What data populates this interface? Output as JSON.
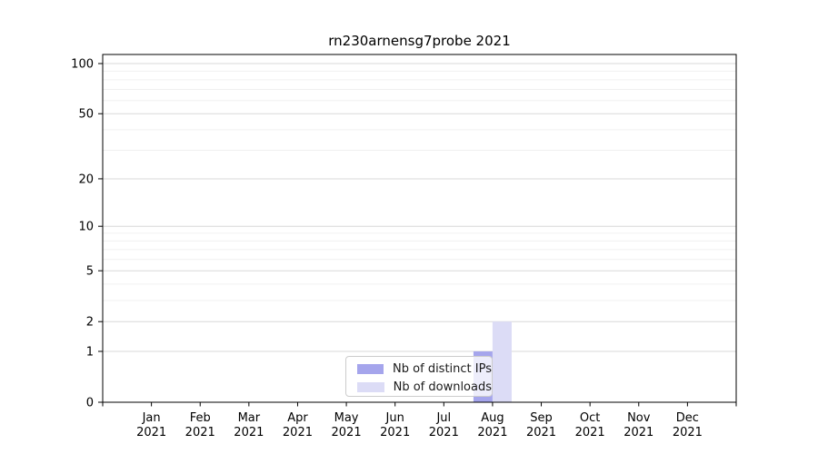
{
  "chart_data": {
    "type": "bar",
    "title": "rn230arnensg7probe 2021",
    "categories": [
      "Jan 2021",
      "Feb 2021",
      "Mar 2021",
      "Apr 2021",
      "May 2021",
      "Jun 2021",
      "Jul 2021",
      "Aug 2021",
      "Sep 2021",
      "Oct 2021",
      "Nov 2021",
      "Dec 2021"
    ],
    "series": [
      {
        "name": "Nb of distinct IPs",
        "color": "#a5a5ec",
        "values": [
          0,
          0,
          0,
          0,
          0,
          0,
          0,
          1,
          0,
          0,
          0,
          0
        ]
      },
      {
        "name": "Nb of downloads",
        "color": "#dcdcf6",
        "values": [
          0,
          0,
          0,
          0,
          0,
          0,
          0,
          2,
          0,
          0,
          0,
          0
        ]
      }
    ],
    "yscale": "log1p",
    "ylim": [
      0,
      100
    ],
    "yticks": [
      0,
      1,
      2,
      5,
      10,
      20,
      50,
      100
    ],
    "minor_yticks": [
      3,
      4,
      6,
      7,
      8,
      9,
      30,
      40,
      60,
      70,
      80,
      90
    ],
    "grid": true,
    "legend_position": "lower center-right, inside plot",
    "colors": {
      "axis": "#000000",
      "grid_major": "#d8d8d8",
      "grid_minor": "#f0f0f0",
      "text": "#000000"
    }
  }
}
